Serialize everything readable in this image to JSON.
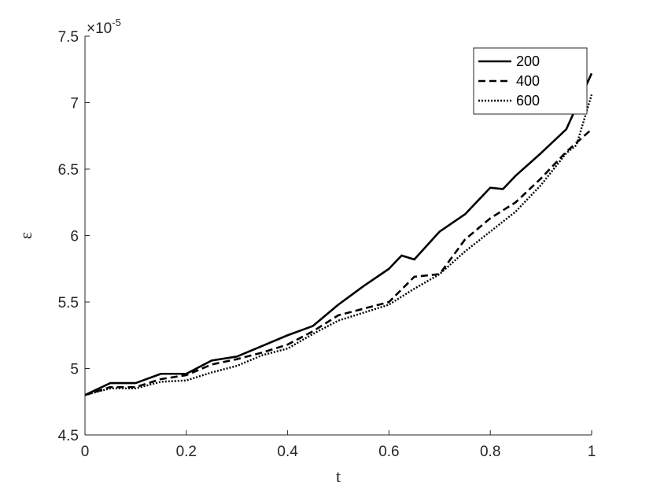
{
  "chart_data": {
    "type": "line",
    "title": "",
    "xlabel": "t",
    "ylabel": "ε",
    "xlim": [
      0,
      1
    ],
    "ylim": [
      4.5,
      7.5
    ],
    "x_ticks": [
      0,
      0.2,
      0.4,
      0.6,
      0.8,
      1
    ],
    "x_tick_labels": [
      "0",
      "0.2",
      "0.4",
      "0.6",
      "0.8",
      "1"
    ],
    "y_ticks": [
      4.5,
      5,
      5.5,
      6,
      6.5,
      7,
      7.5
    ],
    "y_tick_labels": [
      "4.5",
      "5",
      "5.5",
      "6",
      "6.5",
      "7",
      "7.5"
    ],
    "y_exponent_base": "×10",
    "y_exponent_power": "-5",
    "grid": false,
    "legend_position": "top-right",
    "series": [
      {
        "name": "200",
        "style": "solid",
        "x": [
          0,
          0.05,
          0.1,
          0.15,
          0.2,
          0.25,
          0.3,
          0.35,
          0.4,
          0.45,
          0.5,
          0.55,
          0.6,
          0.625,
          0.65,
          0.7,
          0.75,
          0.8,
          0.825,
          0.85,
          0.9,
          0.95,
          1.0
        ],
        "values": [
          4.8,
          4.89,
          4.89,
          4.96,
          4.96,
          5.06,
          5.09,
          5.17,
          5.25,
          5.32,
          5.48,
          5.62,
          5.75,
          5.85,
          5.82,
          6.03,
          6.16,
          6.36,
          6.35,
          6.45,
          6.62,
          6.8,
          7.22
        ]
      },
      {
        "name": "400",
        "style": "dashed",
        "x": [
          0,
          0.05,
          0.1,
          0.15,
          0.2,
          0.25,
          0.3,
          0.35,
          0.4,
          0.45,
          0.5,
          0.55,
          0.6,
          0.65,
          0.7,
          0.75,
          0.8,
          0.85,
          0.9,
          0.95,
          1.0
        ],
        "values": [
          4.8,
          4.86,
          4.86,
          4.92,
          4.95,
          5.03,
          5.07,
          5.12,
          5.18,
          5.28,
          5.4,
          5.45,
          5.5,
          5.69,
          5.71,
          5.97,
          6.13,
          6.25,
          6.43,
          6.63,
          6.8
        ]
      },
      {
        "name": "600",
        "style": "dotted",
        "x": [
          0,
          0.05,
          0.1,
          0.15,
          0.2,
          0.25,
          0.3,
          0.35,
          0.4,
          0.45,
          0.5,
          0.55,
          0.6,
          0.65,
          0.7,
          0.75,
          0.8,
          0.85,
          0.9,
          0.95,
          0.97,
          1.0
        ],
        "values": [
          4.8,
          4.85,
          4.85,
          4.9,
          4.91,
          4.97,
          5.02,
          5.1,
          5.15,
          5.26,
          5.36,
          5.42,
          5.48,
          5.6,
          5.71,
          5.88,
          6.03,
          6.18,
          6.38,
          6.62,
          6.68,
          7.06
        ]
      }
    ]
  }
}
